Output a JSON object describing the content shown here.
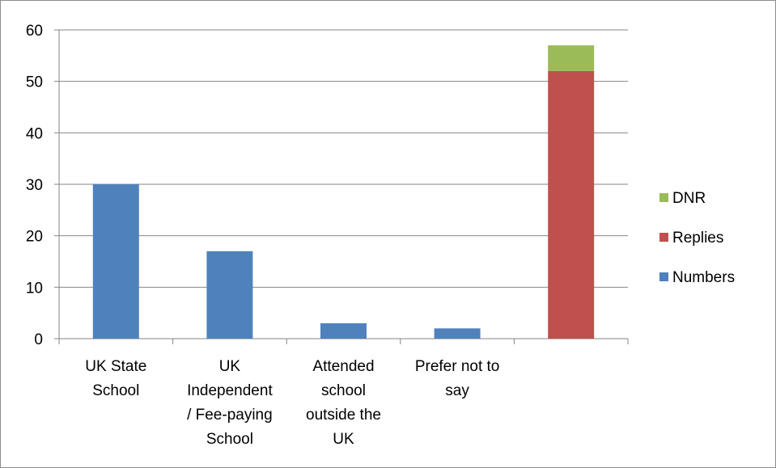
{
  "chart_data": {
    "type": "bar",
    "stacked": true,
    "categories": [
      [
        "UK State",
        "School"
      ],
      [
        "UK",
        "Independent",
        "/ Fee-paying",
        "School"
      ],
      [
        "Attended",
        "school",
        "outside the",
        "UK"
      ],
      [
        "Prefer not to",
        "say"
      ],
      [
        ""
      ]
    ],
    "series": [
      {
        "name": "Numbers",
        "color": "#4f81bd",
        "values": [
          30,
          17,
          3,
          2,
          0
        ]
      },
      {
        "name": "Replies",
        "color": "#c0504d",
        "values": [
          0,
          0,
          0,
          0,
          52
        ]
      },
      {
        "name": "DNR",
        "color": "#9bbb59",
        "values": [
          0,
          0,
          0,
          0,
          5
        ]
      }
    ],
    "ylim": [
      0,
      60
    ],
    "yticks": [
      0,
      10,
      20,
      30,
      40,
      50,
      60
    ],
    "grid": true,
    "legend": "right",
    "legend_order": [
      "DNR",
      "Replies",
      "Numbers"
    ],
    "title": "",
    "xlabel": "",
    "ylabel": ""
  }
}
